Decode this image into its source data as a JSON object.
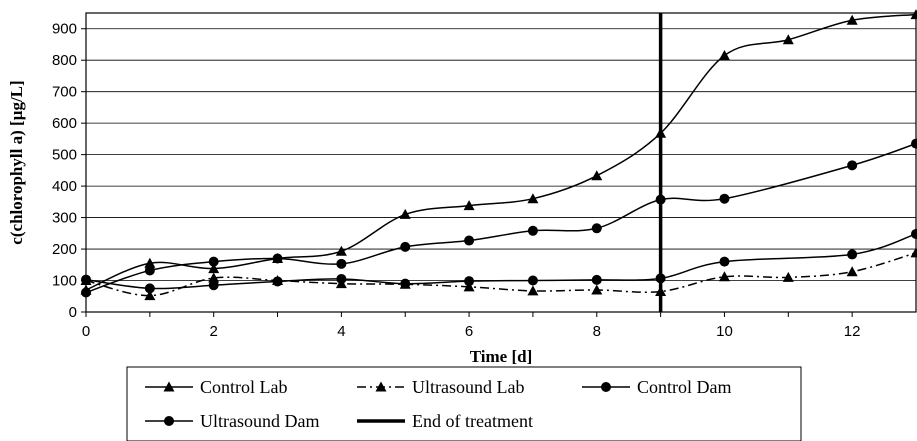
{
  "chart_data": {
    "type": "line",
    "xlabel": "Time [d]",
    "ylabel": "c(chlorophyll a) [µg/L]",
    "xlim": [
      0,
      13
    ],
    "ylim": [
      0,
      950
    ],
    "x_ticks": [
      0,
      2,
      4,
      6,
      8,
      10,
      12
    ],
    "y_ticks": [
      0,
      100,
      200,
      300,
      400,
      500,
      600,
      700,
      800,
      900
    ],
    "grid": "horizontal",
    "legend_position": "bottom",
    "series": [
      {
        "name": "Control Lab",
        "marker": "triangle",
        "line": "solid",
        "color": "#000000",
        "x": [
          0,
          1,
          2,
          3,
          4,
          5,
          6,
          7,
          8,
          9,
          10,
          11,
          12,
          13
        ],
        "y": [
          70,
          155,
          138,
          170,
          193,
          310,
          338,
          360,
          433,
          568,
          815,
          865,
          927,
          945
        ]
      },
      {
        "name": "Ultrasound Lab",
        "marker": "triangle",
        "line": "dash-dot",
        "color": "#000000",
        "x": [
          0,
          1,
          2,
          3,
          4,
          5,
          6,
          7,
          8,
          9,
          10,
          11,
          12,
          13
        ],
        "y": [
          100,
          52,
          108,
          100,
          90,
          88,
          80,
          67,
          70,
          65,
          112,
          110,
          128,
          188
        ]
      },
      {
        "name": "Control Dam",
        "marker": "circle",
        "line": "solid",
        "color": "#000000",
        "x": [
          0,
          1,
          2,
          3,
          4,
          5,
          6,
          7,
          8,
          9,
          10,
          12,
          13
        ],
        "y": [
          62,
          132,
          160,
          170,
          153,
          207,
          227,
          258,
          266,
          357,
          360,
          466,
          535
        ]
      },
      {
        "name": "Ultrasound Dam",
        "marker": "circle",
        "line": "solid",
        "color": "#000000",
        "x": [
          0,
          1,
          2,
          3,
          4,
          5,
          6,
          7,
          8,
          9,
          10,
          12,
          13
        ],
        "y": [
          103,
          75,
          85,
          97,
          105,
          90,
          98,
          100,
          102,
          107,
          160,
          183,
          248
        ]
      }
    ],
    "vertical_line": {
      "name": "End of treatment",
      "x": 9,
      "color": "#000000"
    }
  }
}
